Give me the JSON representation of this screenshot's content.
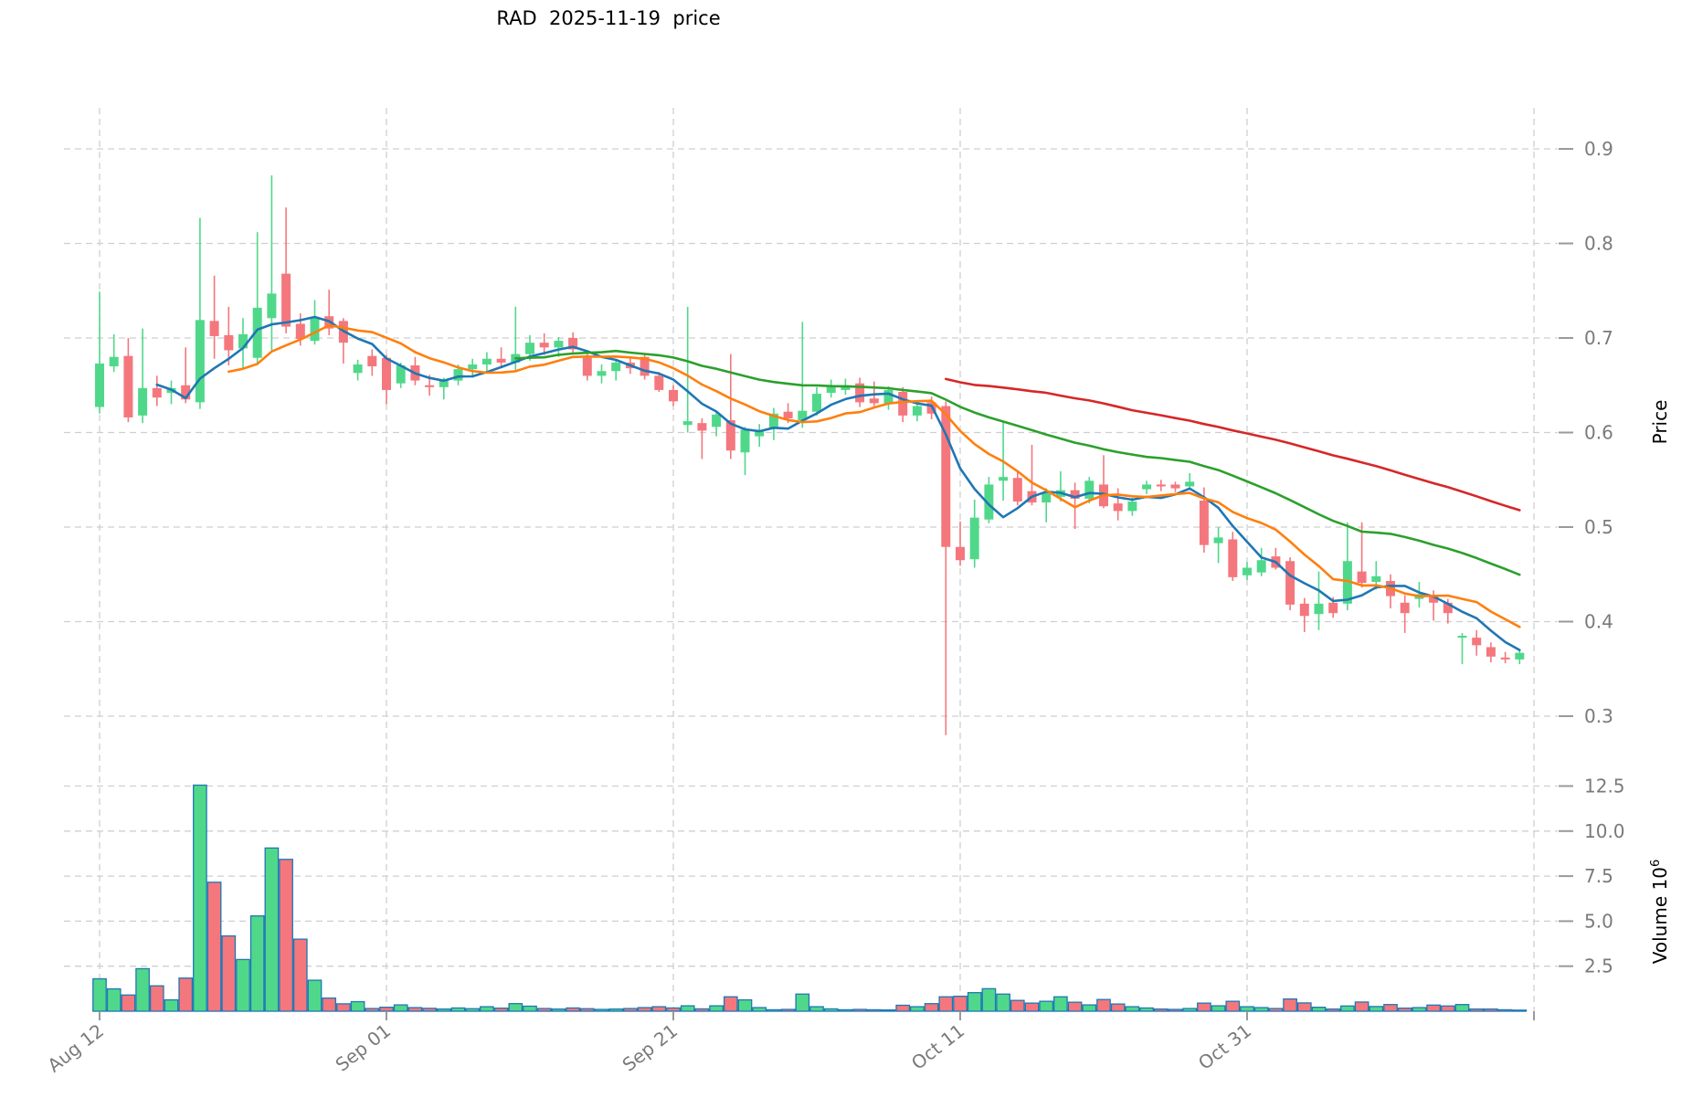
{
  "chart_data": {
    "type": "candlestick",
    "title": "RAD  2025-11-19  price",
    "ylabel": "Price",
    "ylabel2": "Volume 10",
    "ylabel2_exponent": "6",
    "legend_position": "none",
    "grid": true,
    "x_ticks": [
      {
        "label": "Aug 12",
        "day": 0
      },
      {
        "label": "Sep 01",
        "day": 20
      },
      {
        "label": "Sep 21",
        "day": 40
      },
      {
        "label": "Oct 11",
        "day": 60
      },
      {
        "label": "Oct 31",
        "day": 80
      },
      {
        "label": "",
        "day": 100
      }
    ],
    "price_ticks": [
      "0.3",
      "0.4",
      "0.5",
      "0.6",
      "0.7",
      "0.8",
      "0.9"
    ],
    "volume_ticks": [
      "2.5",
      "5.0",
      "7.5",
      "10.0",
      "12.5"
    ],
    "ylim_price": [
      0.277,
      0.944
    ],
    "ylim_volume_millions": [
      0,
      14.5
    ],
    "volume_unit": "1e6",
    "colors": {
      "up": "#50d88a",
      "down": "#f4777d",
      "volume_edge": "#1f77b4",
      "grid": "#cfcfcf",
      "tick_label": "#7a7a7a",
      "tick_mark": "#9a9a9a",
      "title": "#000000"
    },
    "moving_averages": [
      {
        "name": "ma-5",
        "window": 5,
        "color": "#1f77b4"
      },
      {
        "name": "ma-10",
        "window": 10,
        "color": "#ff7f0e"
      },
      {
        "name": "ma-30",
        "window": 30,
        "color": "#2ca02c"
      },
      {
        "name": "ma-60",
        "window": 60,
        "color": "#d62728"
      }
    ],
    "candles": {
      "open": [
        0.627,
        0.67,
        0.681,
        0.618,
        0.647,
        0.642,
        0.65,
        0.632,
        0.718,
        0.703,
        0.689,
        0.679,
        0.721,
        0.768,
        0.715,
        0.697,
        0.723,
        0.718,
        0.663,
        0.681,
        0.679,
        0.652,
        0.671,
        0.65,
        0.648,
        0.655,
        0.667,
        0.672,
        0.678,
        0.674,
        0.683,
        0.695,
        0.69,
        0.7,
        0.679,
        0.66,
        0.665,
        0.674,
        0.68,
        0.66,
        0.645,
        0.608,
        0.61,
        0.606,
        0.613,
        0.579,
        0.596,
        0.605,
        0.622,
        0.613,
        0.622,
        0.642,
        0.645,
        0.652,
        0.636,
        0.63,
        0.643,
        0.618,
        0.632,
        0.628,
        0.479,
        0.466,
        0.508,
        0.549,
        0.552,
        0.538,
        0.526,
        0.532,
        0.539,
        0.53,
        0.545,
        0.525,
        0.517,
        0.54,
        0.545,
        0.545,
        0.543,
        0.528,
        0.483,
        0.487,
        0.449,
        0.452,
        0.469,
        0.464,
        0.419,
        0.408,
        0.42,
        0.419,
        0.453,
        0.442,
        0.443,
        0.42,
        0.424,
        0.428,
        0.42,
        0.383,
        0.383,
        0.373,
        0.362,
        0.36
      ],
      "high": [
        0.749,
        0.704,
        0.7,
        0.71,
        0.66,
        0.655,
        0.69,
        0.827,
        0.766,
        0.733,
        0.721,
        0.812,
        0.872,
        0.838,
        0.726,
        0.74,
        0.751,
        0.721,
        0.677,
        0.688,
        0.682,
        0.674,
        0.68,
        0.661,
        0.658,
        0.672,
        0.678,
        0.685,
        0.69,
        0.733,
        0.703,
        0.705,
        0.701,
        0.706,
        0.683,
        0.672,
        0.678,
        0.68,
        0.684,
        0.664,
        0.65,
        0.733,
        0.615,
        0.622,
        0.683,
        0.606,
        0.609,
        0.626,
        0.631,
        0.717,
        0.648,
        0.656,
        0.657,
        0.658,
        0.654,
        0.649,
        0.648,
        0.633,
        0.638,
        0.633,
        0.506,
        0.529,
        0.553,
        0.611,
        0.559,
        0.587,
        0.541,
        0.559,
        0.547,
        0.553,
        0.576,
        0.541,
        0.531,
        0.549,
        0.55,
        0.548,
        0.557,
        0.542,
        0.5,
        0.495,
        0.463,
        0.478,
        0.478,
        0.468,
        0.425,
        0.453,
        0.426,
        0.505,
        0.505,
        0.464,
        0.45,
        0.428,
        0.442,
        0.433,
        0.424,
        0.388,
        0.391,
        0.378,
        0.368,
        0.37
      ],
      "low": [
        0.62,
        0.664,
        0.611,
        0.61,
        0.628,
        0.63,
        0.631,
        0.625,
        0.678,
        0.671,
        0.668,
        0.672,
        0.687,
        0.705,
        0.692,
        0.693,
        0.703,
        0.673,
        0.655,
        0.66,
        0.63,
        0.647,
        0.65,
        0.639,
        0.635,
        0.65,
        0.658,
        0.664,
        0.668,
        0.666,
        0.676,
        0.682,
        0.68,
        0.683,
        0.655,
        0.652,
        0.655,
        0.662,
        0.656,
        0.643,
        0.628,
        0.6,
        0.572,
        0.596,
        0.572,
        0.555,
        0.585,
        0.592,
        0.61,
        0.605,
        0.618,
        0.637,
        0.64,
        0.627,
        0.628,
        0.624,
        0.611,
        0.612,
        0.614,
        0.28,
        0.459,
        0.457,
        0.504,
        0.528,
        0.523,
        0.523,
        0.505,
        0.527,
        0.498,
        0.525,
        0.52,
        0.507,
        0.512,
        0.535,
        0.538,
        0.537,
        0.539,
        0.473,
        0.462,
        0.443,
        0.444,
        0.448,
        0.455,
        0.412,
        0.389,
        0.391,
        0.404,
        0.412,
        0.436,
        0.434,
        0.414,
        0.388,
        0.415,
        0.401,
        0.398,
        0.355,
        0.364,
        0.357,
        0.356,
        0.355
      ],
      "close": [
        0.673,
        0.68,
        0.616,
        0.647,
        0.637,
        0.647,
        0.635,
        0.719,
        0.702,
        0.687,
        0.704,
        0.732,
        0.747,
        0.712,
        0.699,
        0.721,
        0.71,
        0.695,
        0.672,
        0.67,
        0.645,
        0.671,
        0.655,
        0.648,
        0.655,
        0.667,
        0.672,
        0.678,
        0.674,
        0.683,
        0.695,
        0.69,
        0.697,
        0.688,
        0.66,
        0.665,
        0.674,
        0.668,
        0.66,
        0.645,
        0.633,
        0.612,
        0.602,
        0.619,
        0.581,
        0.603,
        0.602,
        0.62,
        0.615,
        0.623,
        0.641,
        0.648,
        0.65,
        0.632,
        0.631,
        0.645,
        0.618,
        0.628,
        0.62,
        0.479,
        0.465,
        0.51,
        0.545,
        0.553,
        0.527,
        0.526,
        0.536,
        0.539,
        0.53,
        0.549,
        0.522,
        0.517,
        0.527,
        0.545,
        0.543,
        0.541,
        0.548,
        0.481,
        0.489,
        0.447,
        0.457,
        0.465,
        0.457,
        0.418,
        0.406,
        0.419,
        0.409,
        0.464,
        0.441,
        0.448,
        0.427,
        0.409,
        0.429,
        0.42,
        0.409,
        0.385,
        0.375,
        0.363,
        0.36,
        0.367
      ],
      "volume_millions": [
        1.8,
        1.24,
        0.9,
        2.36,
        1.41,
        0.63,
        1.84,
        12.55,
        7.16,
        4.18,
        2.87,
        5.29,
        9.06,
        8.43,
        4.0,
        1.72,
        0.73,
        0.41,
        0.53,
        0.15,
        0.22,
        0.35,
        0.2,
        0.16,
        0.12,
        0.18,
        0.14,
        0.25,
        0.17,
        0.42,
        0.28,
        0.15,
        0.12,
        0.18,
        0.14,
        0.1,
        0.12,
        0.15,
        0.2,
        0.25,
        0.18,
        0.3,
        0.13,
        0.3,
        0.8,
        0.63,
        0.2,
        0.08,
        0.1,
        0.95,
        0.25,
        0.13,
        0.08,
        0.1,
        0.08,
        0.07,
        0.33,
        0.25,
        0.42,
        0.8,
        0.83,
        1.03,
        1.25,
        0.95,
        0.6,
        0.45,
        0.55,
        0.8,
        0.5,
        0.35,
        0.65,
        0.4,
        0.25,
        0.18,
        0.12,
        0.1,
        0.15,
        0.45,
        0.3,
        0.55,
        0.25,
        0.2,
        0.15,
        0.68,
        0.46,
        0.22,
        0.12,
        0.29,
        0.51,
        0.26,
        0.37,
        0.17,
        0.2,
        0.34,
        0.29,
        0.37,
        0.12,
        0.12,
        0.08,
        0.05
      ]
    }
  }
}
